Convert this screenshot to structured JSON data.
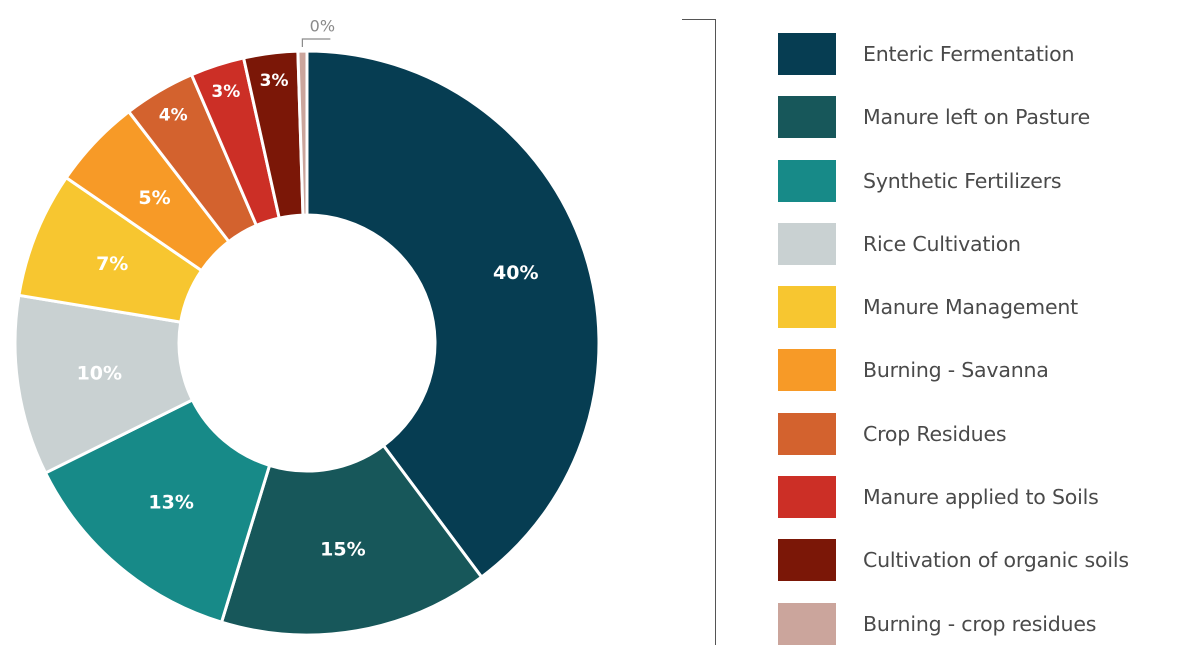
{
  "chart_data": {
    "type": "pie",
    "donut": true,
    "legend_position": "right",
    "categories": [
      "Enteric Fermentation",
      "Manure left on Pasture",
      "Synthetic Fertilizers",
      "Rice Cultivation",
      "Manure Management",
      "Burning - Savanna",
      "Crop Residues",
      "Manure applied to Soils",
      "Cultivation of organic soils",
      "Burning - crop residues"
    ],
    "values": [
      40,
      15,
      13,
      10,
      7,
      5,
      4,
      3,
      3,
      0.5
    ],
    "labels": [
      "40%",
      "15%",
      "13%",
      "10%",
      "7%",
      "5%",
      "4%",
      "3%",
      "3%",
      "0%"
    ],
    "colors": [
      "#063d52",
      "#17575a",
      "#178a88",
      "#c9d1d2",
      "#f7c630",
      "#f79a27",
      "#d3622e",
      "#cc2f26",
      "#7b1707",
      "#cba59c"
    ]
  }
}
